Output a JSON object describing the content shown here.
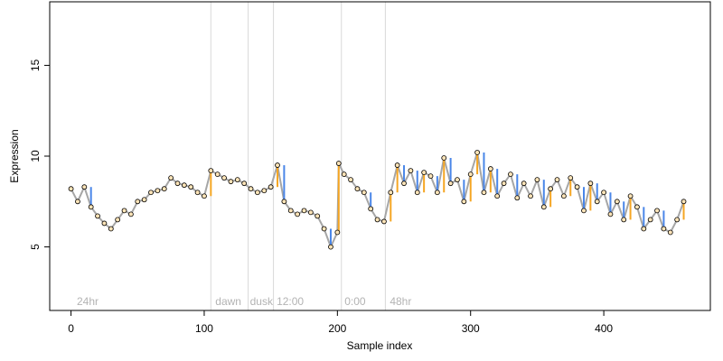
{
  "chart_data": {
    "type": "scatter",
    "title": "",
    "xlabel": "Sample index",
    "ylabel": "Expression",
    "xlim": [
      -16,
      480
    ],
    "ylim": [
      1.5,
      18.5
    ],
    "x_ticks": [
      0,
      100,
      200,
      300,
      400
    ],
    "x_tick_labels": [
      "0",
      "100",
      "200",
      "300",
      "400"
    ],
    "y_ticks": [
      5,
      10,
      15
    ],
    "y_tick_labels": [
      "5",
      "10",
      "15"
    ],
    "grid": false,
    "legend": "none",
    "colors": {
      "line": "#a6a6a6",
      "rise": "#f5a623",
      "fall": "#4a86e8",
      "point_fill": "#fde4b8",
      "point_stroke": "#000000",
      "separator": "#d9d9d9",
      "annotation": "#b3b3b3"
    },
    "separators": [
      105,
      133,
      152,
      203,
      236
    ],
    "annotations": [
      {
        "text": "24hr",
        "x": 3
      },
      {
        "text": "dawn",
        "x": 107
      },
      {
        "text": "dusk",
        "x": 133
      },
      {
        "text": "12:00",
        "x": 153
      },
      {
        "text": "0:00",
        "x": 204
      },
      {
        "text": "48hr",
        "x": 238
      }
    ],
    "series": [
      {
        "x": [
          0,
          5,
          10,
          15,
          20,
          25,
          30,
          35,
          40,
          45,
          50,
          55,
          60,
          65,
          70,
          75,
          80,
          85,
          90,
          95,
          100,
          105,
          110,
          115,
          120,
          125,
          130,
          135,
          140,
          145,
          150,
          155,
          160,
          165,
          170,
          175,
          180,
          185,
          190,
          195,
          200,
          201,
          205,
          210,
          215,
          220,
          225,
          230,
          235,
          240,
          245,
          250,
          255,
          260,
          265,
          270,
          275,
          280,
          285,
          290,
          295,
          300,
          305,
          310,
          315,
          320,
          325,
          330,
          335,
          340,
          345,
          350,
          355,
          360,
          365,
          370,
          375,
          380,
          385,
          390,
          395,
          400,
          405,
          410,
          415,
          420,
          425,
          430,
          435,
          440,
          445,
          450,
          455,
          460
        ],
        "y": [
          8.2,
          7.5,
          8.3,
          7.2,
          6.7,
          6.3,
          6.0,
          6.5,
          7.0,
          6.8,
          7.5,
          7.6,
          8.0,
          8.1,
          8.2,
          8.8,
          8.5,
          8.4,
          8.3,
          8.0,
          7.8,
          9.2,
          9.0,
          8.8,
          8.6,
          8.7,
          8.5,
          8.2,
          8.0,
          8.1,
          8.3,
          9.5,
          7.5,
          7.0,
          6.8,
          7.0,
          6.9,
          6.7,
          6.0,
          5.0,
          5.8,
          9.6,
          9.0,
          8.7,
          8.2,
          8.0,
          7.1,
          6.5,
          6.4,
          8.0,
          9.5,
          8.5,
          9.2,
          8.0,
          9.1,
          8.9,
          8.0,
          9.9,
          8.5,
          8.7,
          7.5,
          9.0,
          10.2,
          8.0,
          9.3,
          7.8,
          8.5,
          9.0,
          7.7,
          8.5,
          7.8,
          8.7,
          7.2,
          8.2,
          8.7,
          7.8,
          8.8,
          8.3,
          7.0,
          8.5,
          7.5,
          8.0,
          6.8,
          7.5,
          6.5,
          7.8,
          7.2,
          6.0,
          6.5,
          7.0,
          6.0,
          5.8,
          6.5,
          7.5
        ]
      }
    ]
  }
}
